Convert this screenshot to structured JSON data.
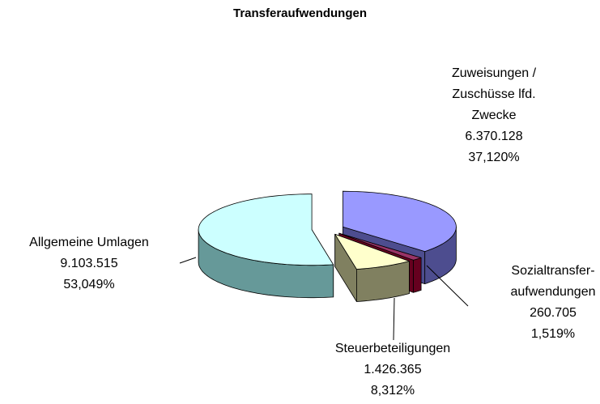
{
  "chart_data": {
    "type": "pie",
    "title": "Transferaufwendungen",
    "categories": [
      "Zuweisungen / Zuschüsse lfd. Zwecke",
      "Sozialtransfer-aufwendungen",
      "Steuerbeteiligungen",
      "Allgemeine Umlagen"
    ],
    "values": [
      6370128,
      260705,
      1426365,
      9103515
    ],
    "value_labels": [
      "6.370.128",
      "260.705",
      "1.426.365",
      "9.103.515"
    ],
    "percent_labels": [
      "37,120%",
      "1,519%",
      "8,312%",
      "53,049%"
    ],
    "colors": [
      "#9999ff",
      "#993366",
      "#ffffcc",
      "#ccffff"
    ],
    "side_colors": [
      "#4d4d8f",
      "#66001f",
      "#808060",
      "#669999"
    ]
  }
}
